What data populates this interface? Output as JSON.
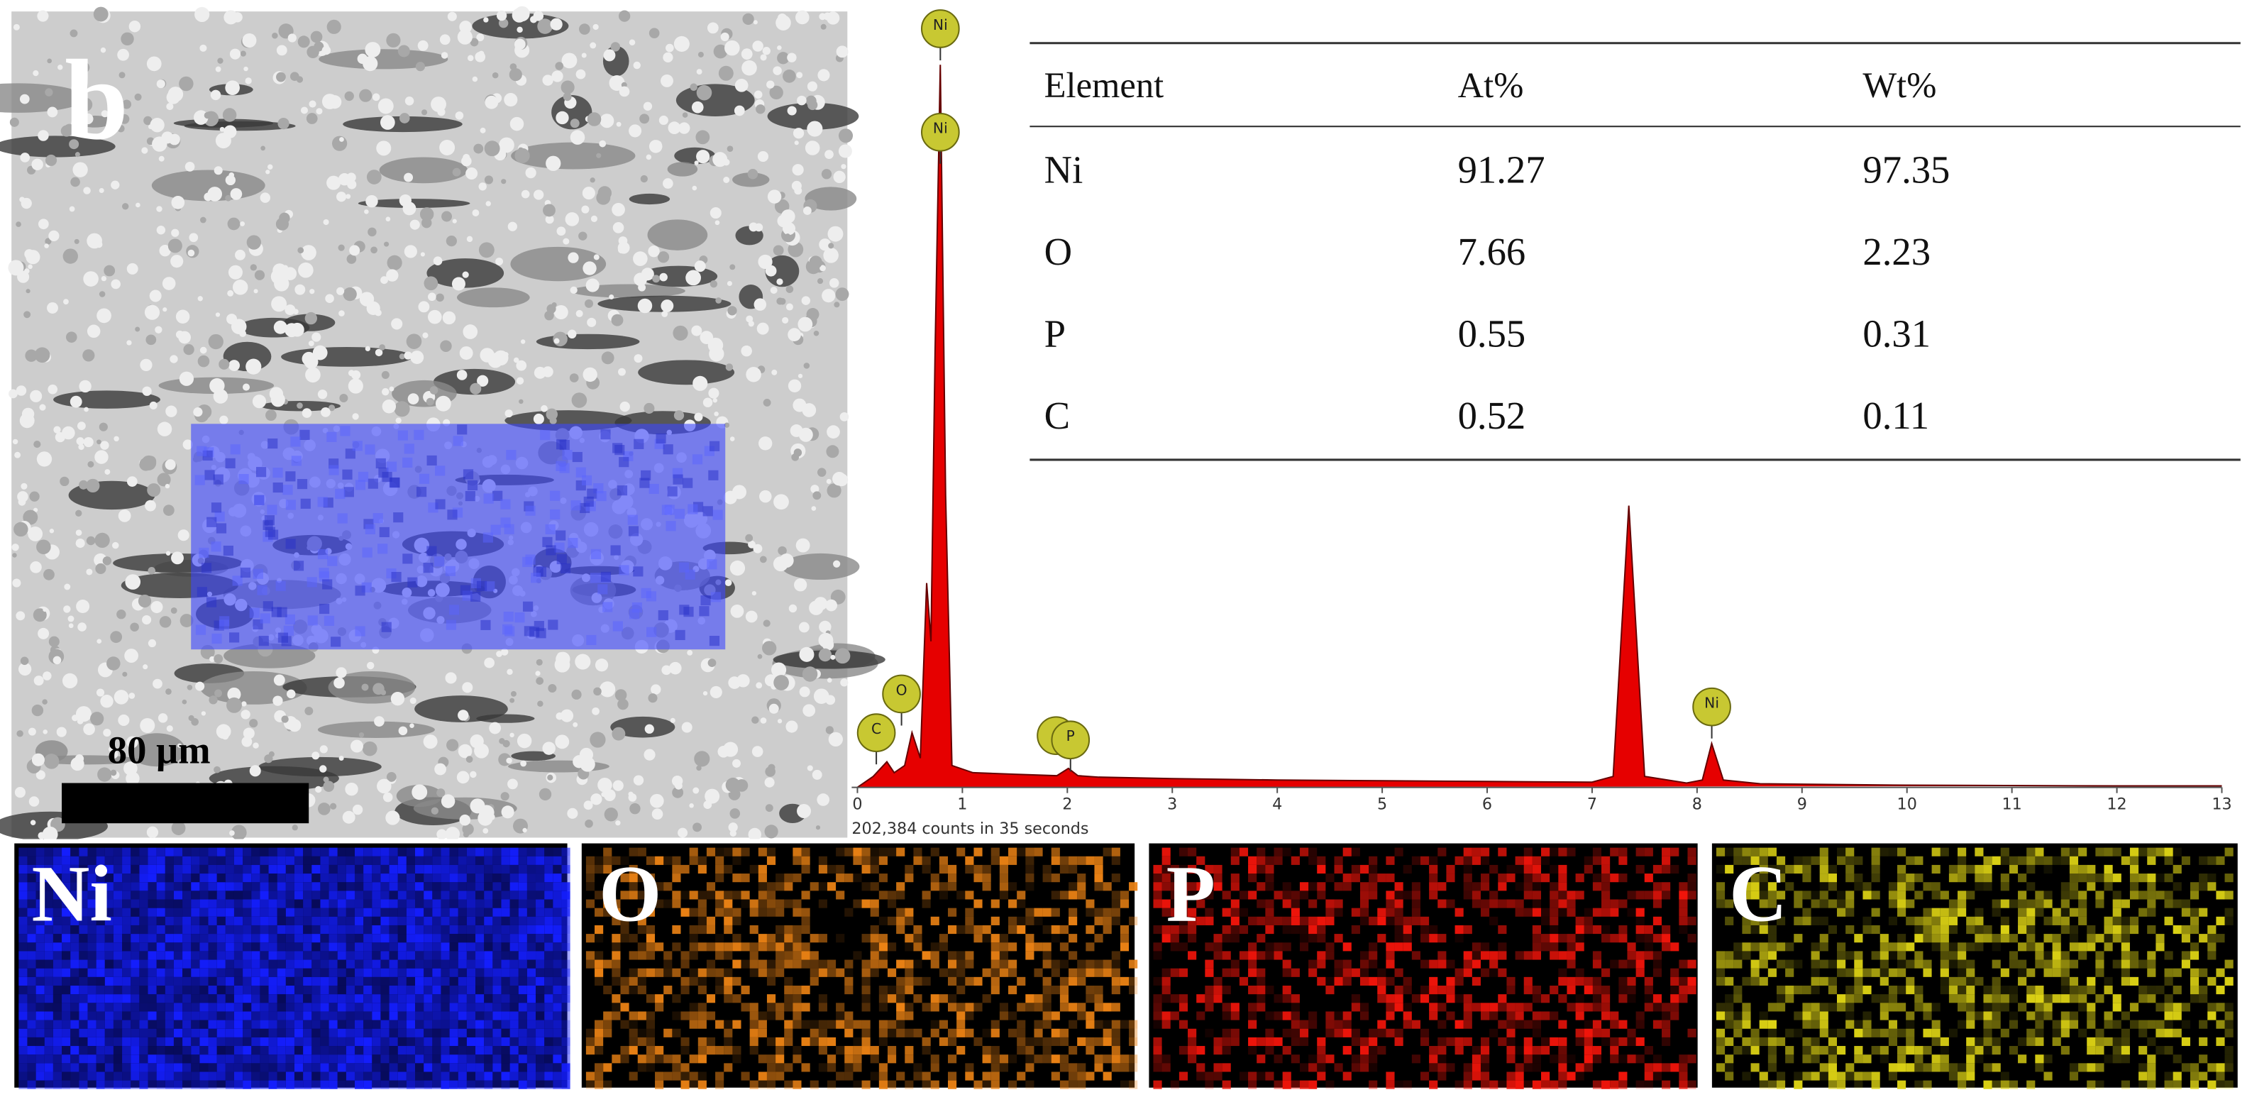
{
  "panel_label": "b",
  "scale_bar": "80 μm",
  "chart_data": {
    "type": "line",
    "x": [
      0,
      0.15,
      0.28,
      0.35,
      0.45,
      0.52,
      0.6,
      0.66,
      0.7,
      0.74,
      0.79,
      0.84,
      0.9,
      1.1,
      1.5,
      1.9,
      2.01,
      2.1,
      2.3,
      3,
      4,
      5,
      6,
      7,
      7.2,
      7.35,
      7.5,
      7.9,
      8.05,
      8.14,
      8.25,
      8.6,
      10,
      12,
      13
    ],
    "values": [
      0,
      1.5,
      3.5,
      2,
      3,
      7.5,
      4,
      28,
      20,
      60,
      99,
      40,
      3,
      2,
      1.8,
      1.6,
      2.6,
      1.6,
      1.4,
      1.2,
      1.0,
      0.9,
      0.8,
      0.7,
      1.5,
      38.6,
      1.5,
      0.6,
      1.0,
      6,
      1.0,
      0.5,
      0.3,
      0.2,
      0.2
    ],
    "color": "#e60000",
    "xlim": [
      0,
      13
    ],
    "xticks": [
      0,
      1,
      2,
      3,
      4,
      5,
      6,
      7,
      8,
      9,
      10,
      11,
      12,
      13
    ],
    "ylim": [
      0,
      100
    ],
    "peak_labels": [
      {
        "label": "C",
        "x": 0.18
      },
      {
        "label": "O",
        "x": 0.42
      },
      {
        "label": "Ni",
        "x": 0.79
      },
      {
        "label": "Ni",
        "x": 0.79
      },
      {
        "label": "P",
        "x": 2.03
      },
      {
        "label": "Ni",
        "x": 8.14
      }
    ],
    "annotation": "202,384 counts in 35 seconds"
  },
  "table": {
    "header": [
      "Element",
      "At%",
      "Wt%"
    ],
    "rows": [
      [
        "Ni",
        91.27,
        97.35
      ],
      [
        "O",
        7.66,
        2.23
      ],
      [
        "P",
        0.55,
        0.31
      ],
      [
        "C",
        0.52,
        0.11
      ]
    ]
  },
  "maps": [
    "Ni",
    "O",
    "P",
    "C"
  ]
}
